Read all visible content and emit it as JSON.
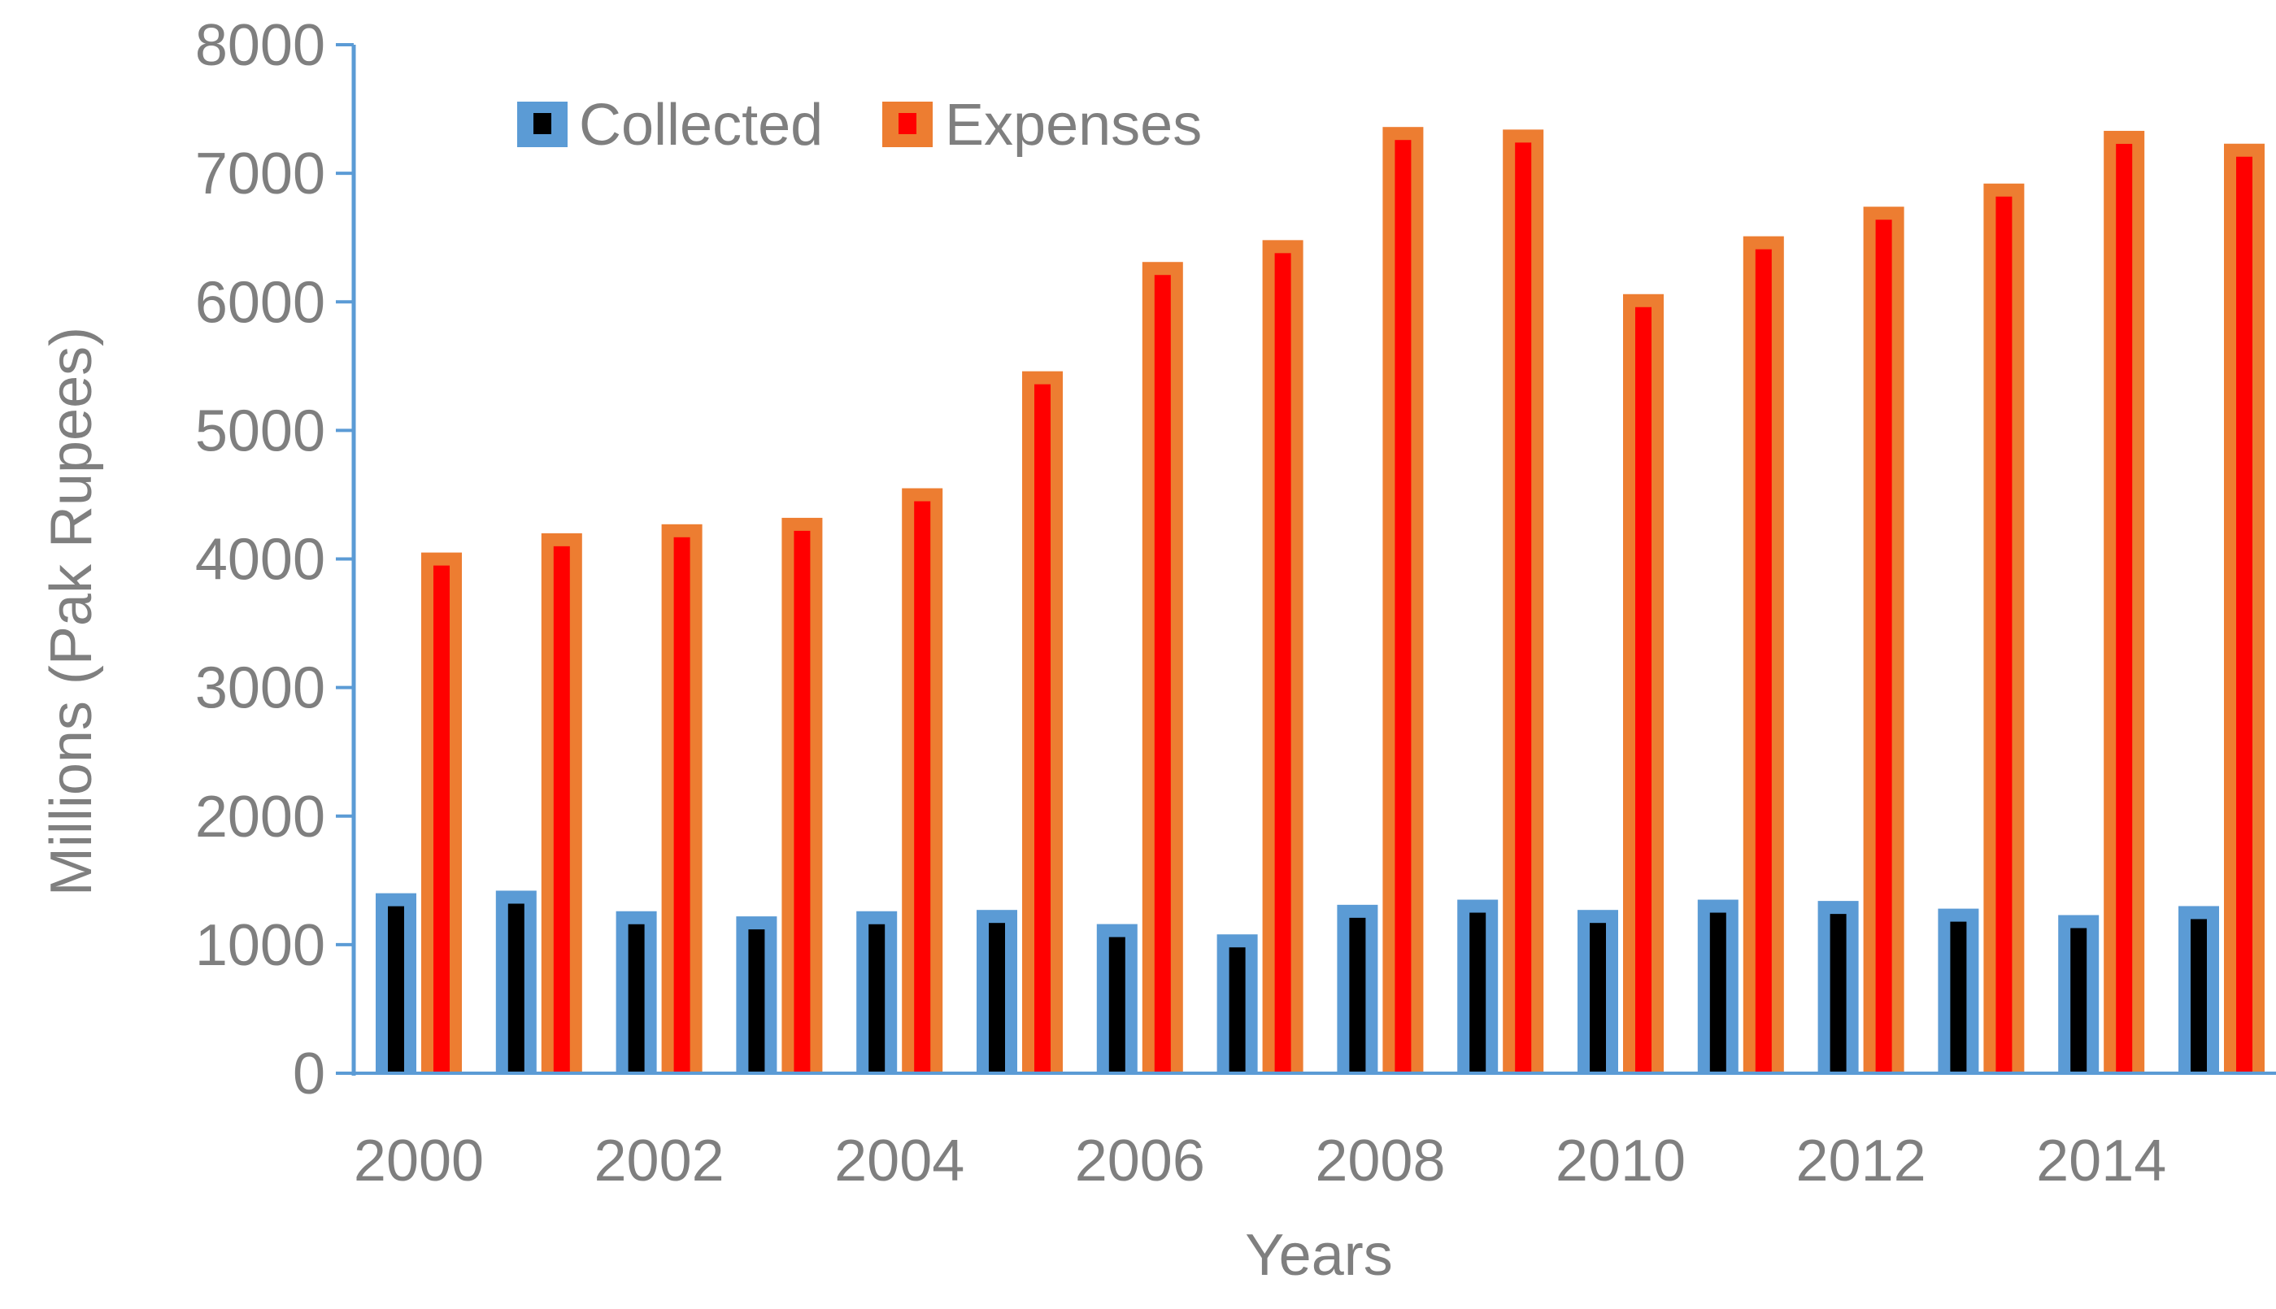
{
  "chart_data": {
    "type": "bar",
    "title": "",
    "xlabel": "Years",
    "ylabel": "Millions (Pak Rupees)",
    "ylim": [
      0,
      8000
    ],
    "yticks": [
      0,
      1000,
      2000,
      3000,
      4000,
      5000,
      6000,
      7000,
      8000
    ],
    "categories": [
      "2000",
      "2001",
      "2002",
      "2003",
      "2004",
      "2005",
      "2006",
      "2007",
      "2008",
      "2009",
      "2010",
      "2011",
      "2012",
      "2013",
      "2014",
      "2015"
    ],
    "xtick_labels": [
      "2000",
      "2002",
      "2004",
      "2006",
      "2008",
      "2010",
      "2012",
      "2014"
    ],
    "series": [
      {
        "name": "Collected",
        "outer_color": "#5b9bd5",
        "inner_color": "#000000",
        "values": [
          1400,
          1420,
          1260,
          1220,
          1260,
          1270,
          1160,
          1080,
          1310,
          1350,
          1270,
          1350,
          1340,
          1280,
          1230,
          1300
        ]
      },
      {
        "name": "Expenses",
        "outer_color": "#ed7d31",
        "inner_color": "#ff0000",
        "values": [
          4050,
          4200,
          4270,
          4320,
          4550,
          5460,
          6310,
          6480,
          7360,
          7340,
          6060,
          6510,
          6740,
          6920,
          7330,
          7230
        ]
      }
    ],
    "legend_position": "top-left",
    "grid": false,
    "axis_color": "#5b9bd5"
  }
}
